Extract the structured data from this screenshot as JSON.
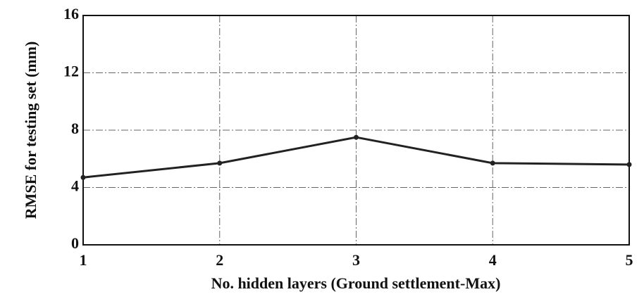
{
  "chart_data": {
    "type": "line",
    "x_label": "No. hidden layers (Ground settlement-Max)",
    "y_label": "RMSE for testing set (mm)",
    "x": [
      1,
      2,
      3,
      4,
      5
    ],
    "series": [
      {
        "color": "#222222",
        "values": [
          4.7,
          5.7,
          7.5,
          5.7,
          5.6
        ]
      }
    ],
    "xlim": [
      1,
      5
    ],
    "xticks": [
      1,
      2,
      3,
      4,
      5
    ],
    "ylim": [
      0,
      16
    ],
    "yticks": [
      0,
      4,
      8,
      12,
      16
    ],
    "grid": true
  }
}
